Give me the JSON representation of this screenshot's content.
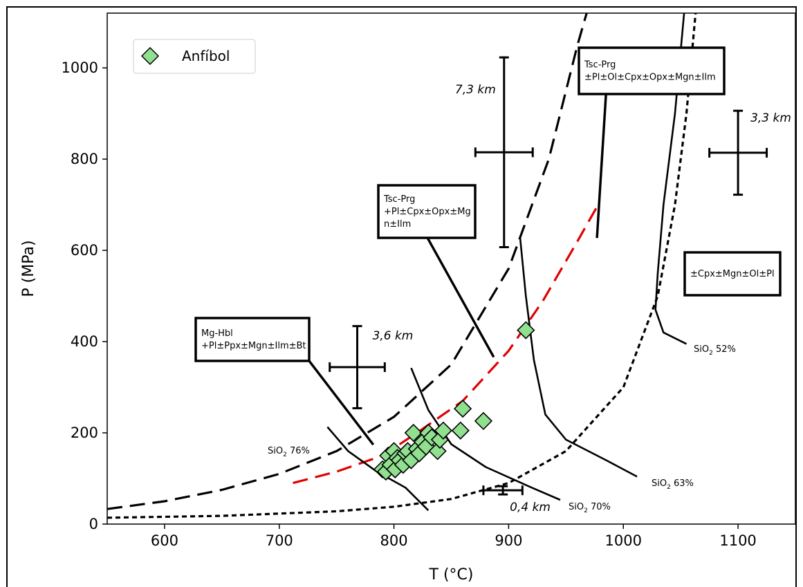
{
  "chart_data": {
    "type": "scatter",
    "xlabel": "T (°C)",
    "ylabel": "P (MPa)",
    "xlim": [
      550,
      1150
    ],
    "ylim": [
      0,
      1120
    ],
    "xticks": [
      600,
      700,
      800,
      900,
      1000,
      1100
    ],
    "yticks": [
      0,
      200,
      400,
      600,
      800,
      1000
    ],
    "grid": false,
    "legend": {
      "placement": "top-left",
      "entries": [
        "Anfíbol"
      ]
    },
    "series": [
      {
        "name": "Anfíbol",
        "marker": "diamond",
        "color": "#90e090",
        "points": [
          [
            790,
            120
          ],
          [
            793,
            115
          ],
          [
            795,
            150
          ],
          [
            797,
            130
          ],
          [
            800,
            160
          ],
          [
            801,
            120
          ],
          [
            803,
            145
          ],
          [
            805,
            140
          ],
          [
            808,
            130
          ],
          [
            810,
            155
          ],
          [
            812,
            160
          ],
          [
            815,
            140
          ],
          [
            817,
            200
          ],
          [
            820,
            165
          ],
          [
            822,
            155
          ],
          [
            825,
            180
          ],
          [
            828,
            170
          ],
          [
            830,
            200
          ],
          [
            833,
            190
          ],
          [
            838,
            160
          ],
          [
            840,
            185
          ],
          [
            843,
            205
          ],
          [
            858,
            205
          ],
          [
            860,
            253
          ],
          [
            878,
            226
          ],
          [
            915,
            425
          ]
        ]
      }
    ],
    "curves": [
      {
        "id": "black-dashed-curve",
        "style": "long-dash",
        "color": "#000000",
        "points": [
          [
            550,
            33
          ],
          [
            600,
            50
          ],
          [
            650,
            75
          ],
          [
            700,
            110
          ],
          [
            750,
            160
          ],
          [
            800,
            235
          ],
          [
            850,
            350
          ],
          [
            900,
            560
          ],
          [
            935,
            800
          ],
          [
            960,
            1050
          ],
          [
            968,
            1120
          ]
        ]
      },
      {
        "id": "red-dashed-curve",
        "style": "long-dash",
        "color": "#e00000",
        "points": [
          [
            712,
            90
          ],
          [
            750,
            115
          ],
          [
            790,
            150
          ],
          [
            820,
            200
          ],
          [
            860,
            270
          ],
          [
            900,
            380
          ],
          [
            930,
            490
          ],
          [
            960,
            620
          ],
          [
            978,
            700
          ]
        ]
      },
      {
        "id": "black-dotted-curve",
        "style": "short-dash",
        "color": "#000000",
        "points": [
          [
            550,
            14
          ],
          [
            650,
            18
          ],
          [
            750,
            28
          ],
          [
            800,
            38
          ],
          [
            850,
            55
          ],
          [
            900,
            90
          ],
          [
            950,
            160
          ],
          [
            1000,
            300
          ],
          [
            1030,
            500
          ],
          [
            1045,
            700
          ],
          [
            1055,
            900
          ],
          [
            1063,
            1120
          ]
        ]
      },
      {
        "id": "sio2-76-curve",
        "style": "solid",
        "color": "#000000",
        "points": [
          [
            742,
            213
          ],
          [
            760,
            160
          ],
          [
            785,
            115
          ],
          [
            810,
            80
          ],
          [
            830,
            30
          ]
        ]
      },
      {
        "id": "sio2-70-curve",
        "style": "solid",
        "color": "#000000",
        "points": [
          [
            815,
            342
          ],
          [
            830,
            250
          ],
          [
            850,
            175
          ],
          [
            880,
            125
          ],
          [
            920,
            80
          ],
          [
            945,
            53
          ]
        ]
      },
      {
        "id": "sio2-63-curve",
        "style": "solid",
        "color": "#000000",
        "points": [
          [
            910,
            628
          ],
          [
            915,
            500
          ],
          [
            922,
            360
          ],
          [
            932,
            240
          ],
          [
            950,
            185
          ],
          [
            985,
            140
          ],
          [
            1012,
            104
          ]
        ]
      },
      {
        "id": "sio2-52-curve",
        "style": "solid",
        "color": "#000000",
        "points": [
          [
            1053,
            1120
          ],
          [
            1045,
            900
          ],
          [
            1035,
            700
          ],
          [
            1030,
            550
          ],
          [
            1028,
            470
          ],
          [
            1035,
            420
          ],
          [
            1055,
            395
          ]
        ]
      }
    ],
    "error_bars": [
      {
        "x": 768,
        "y": 344,
        "xerr": 24,
        "yerr": 90,
        "label": "3,6 km"
      },
      {
        "x": 896,
        "y": 815,
        "xerr": 25,
        "yerr": 208,
        "label": "7,3 km"
      },
      {
        "x": 1100,
        "y": 814,
        "xerr": 25,
        "yerr": 92,
        "label": "3,3 km"
      },
      {
        "x": 895,
        "y": 74,
        "xerr": 17,
        "yerr": 9,
        "label": "0,4 km"
      }
    ],
    "annotations": [
      {
        "id": "box-mg-hbl",
        "lines": [
          "Mg-Hbl",
          "+Pl±Ppx±Mgn±Ilm±Bt"
        ],
        "pointer": [
          [
            722,
            371
          ],
          [
            782,
            174
          ]
        ]
      },
      {
        "id": "box-tsc-prg-1",
        "lines": [
          "Tsc-Prg",
          "+Pl±Cpx±Opx±Mg",
          "n±Ilm"
        ],
        "pointer": [
          [
            828,
            633
          ],
          [
            887,
            366
          ]
        ]
      },
      {
        "id": "box-tsc-prg-2",
        "lines": [
          "Tsc-Prg",
          "±Pl±Ol±Cpx±Opx±Mgn±Ilm"
        ],
        "pointer": [
          [
            985,
            948
          ],
          [
            977,
            627
          ]
        ]
      },
      {
        "id": "box-cpx",
        "lines": [
          "±Cpx±Mgn±Ol±Pl"
        ],
        "pointer": null
      }
    ],
    "curve_labels": [
      {
        "id": "label-sio2-76",
        "main": "SiO",
        "sub": "2",
        "rest": " 76%"
      },
      {
        "id": "label-sio2-70",
        "main": "SiO",
        "sub": "2",
        "rest": " 70%"
      },
      {
        "id": "label-sio2-63",
        "main": "SiO",
        "sub": "2",
        "rest": " 63%"
      },
      {
        "id": "label-sio2-52",
        "main": "SiO",
        "sub": "2",
        "rest": " 52%"
      }
    ]
  },
  "colors": {
    "marker_fill": "#90e090",
    "red_curve": "#e00000",
    "ink": "#000000"
  }
}
